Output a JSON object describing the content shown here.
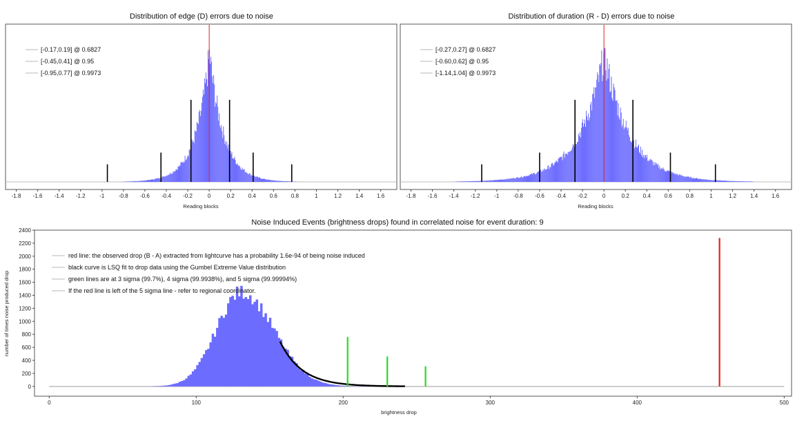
{
  "colors": {
    "histogram": "#6c6cff",
    "marker": "#000000",
    "observed": "#e0201c",
    "sigma": "#22dd22",
    "fit": "#000000",
    "baseline": "#bcbcbc"
  },
  "chart_data": [
    {
      "id": "edge",
      "type": "histogram",
      "title": "Distribution of edge (D) errors due to noise",
      "xlabel": "Reading blocks",
      "ylabel": "",
      "xlim": [
        -1.9,
        1.75
      ],
      "xticks": [
        -1.8,
        -1.6,
        -1.4,
        -1.2,
        -1,
        -0.8,
        -0.6,
        -0.4,
        -0.2,
        0,
        0.2,
        0.4,
        0.6,
        0.8,
        1,
        1.2,
        1.4,
        1.6
      ],
      "xtick_labels": [
        "-1.8",
        "-1.6",
        "-1.4",
        "-1.2",
        "-1",
        "-0.8",
        "-0.6",
        "-0.4",
        "-0.2",
        "0",
        "0.2",
        "0.4",
        "0.6",
        "0.8",
        "1",
        "1.2",
        "1.4",
        "1.6"
      ],
      "distribution": {
        "shape": "laplace-like",
        "center": 0.0,
        "scale": 0.135,
        "peak": 1.0,
        "xmin": -1.2,
        "xmax": 1.2
      },
      "center_line": 0,
      "markers": [
        {
          "x": -0.17,
          "height": 0.7
        },
        {
          "x": 0.19,
          "height": 0.7
        },
        {
          "x": -0.45,
          "height": 0.25
        },
        {
          "x": 0.41,
          "height": 0.25
        },
        {
          "x": -0.95,
          "height": 0.15
        },
        {
          "x": 0.77,
          "height": 0.15
        }
      ],
      "legend": [
        "[-0.17,0.19] @ 0.6827",
        "[-0.45,0.41] @ 0.95",
        "[-0.95,0.77] @ 0.9973"
      ]
    },
    {
      "id": "duration",
      "type": "histogram",
      "title": "Distribution of duration (R - D) errors due to noise",
      "xlabel": "Reading blocks",
      "ylabel": "",
      "xlim": [
        -1.9,
        1.75
      ],
      "xticks": [
        -1.8,
        -1.6,
        -1.4,
        -1.2,
        -1,
        -0.8,
        -0.6,
        -0.4,
        -0.2,
        0,
        0.2,
        0.4,
        0.6,
        0.8,
        1,
        1.2,
        1.4,
        1.6
      ],
      "xtick_labels": [
        "-1.8",
        "-1.6",
        "-1.4",
        "-1.2",
        "-1",
        "-0.8",
        "-0.6",
        "-0.4",
        "-0.2",
        "0",
        "0.2",
        "0.4",
        "0.6",
        "0.8",
        "1",
        "1.2",
        "1.4",
        "1.6"
      ],
      "distribution": {
        "shape": "laplace-like",
        "center": 0.0,
        "scale": 0.24,
        "peak": 1.0,
        "xmin": -1.4,
        "xmax": 1.4
      },
      "center_line": 0,
      "markers": [
        {
          "x": -0.27,
          "height": 0.7
        },
        {
          "x": 0.27,
          "height": 0.7
        },
        {
          "x": -0.6,
          "height": 0.25
        },
        {
          "x": 0.62,
          "height": 0.25
        },
        {
          "x": -1.14,
          "height": 0.15
        },
        {
          "x": 1.04,
          "height": 0.15
        }
      ],
      "legend": [
        "[-0.27,0.27] @ 0.6827",
        "[-0.60,0.62] @ 0.95",
        "[-1.14,1.04] @ 0.9973"
      ]
    },
    {
      "id": "noise",
      "type": "histogram",
      "title": "Noise Induced Events (brightness drops) found in correlated noise for event duration: 9",
      "xlabel": "brightness drop",
      "ylabel": "number of times noise produced drop",
      "xlim": [
        -10,
        505
      ],
      "ylim": [
        -150,
        2400
      ],
      "xticks": [
        0,
        100,
        200,
        300,
        400,
        500
      ],
      "xtick_labels": [
        "0",
        "100",
        "200",
        "300",
        "400",
        "500"
      ],
      "yticks": [
        0,
        200,
        400,
        600,
        800,
        1000,
        1200,
        1400,
        1600,
        1800,
        2000,
        2200,
        2400
      ],
      "ytick_labels": [
        "0",
        "200",
        "400",
        "600",
        "800",
        "1000",
        "1200",
        "1400",
        "1600",
        "1800",
        "2000",
        "2200",
        "2400"
      ],
      "bins": {
        "start": 70,
        "end": 242,
        "width": 1.5,
        "mode": 130,
        "peak": 1450,
        "sigma_left": 17,
        "sigma_right": 22
      },
      "baseline_range": [
        0,
        500
      ],
      "fit_curve": {
        "start": 157,
        "end": 242,
        "start_value": 690,
        "decay": 15
      },
      "sigma_lines": [
        {
          "x": 203,
          "value": 760
        },
        {
          "x": 230,
          "value": 460
        },
        {
          "x": 256,
          "value": 310
        }
      ],
      "observed_line": {
        "x": 456,
        "value": 2280
      },
      "legend": [
        "red line: the observed drop (B - A) extracted from lightcurve has a probability 1.6e-94 of being noise induced",
        "black curve is LSQ fit to drop data using the Gumbel Extreme Value distribution",
        "green lines are at 3 sigma (99.7%), 4 sigma (99.9938%), and 5 sigma (99.99994%)",
        "If the red line is left of the 5 sigma line - refer to regional coordinator."
      ]
    }
  ]
}
